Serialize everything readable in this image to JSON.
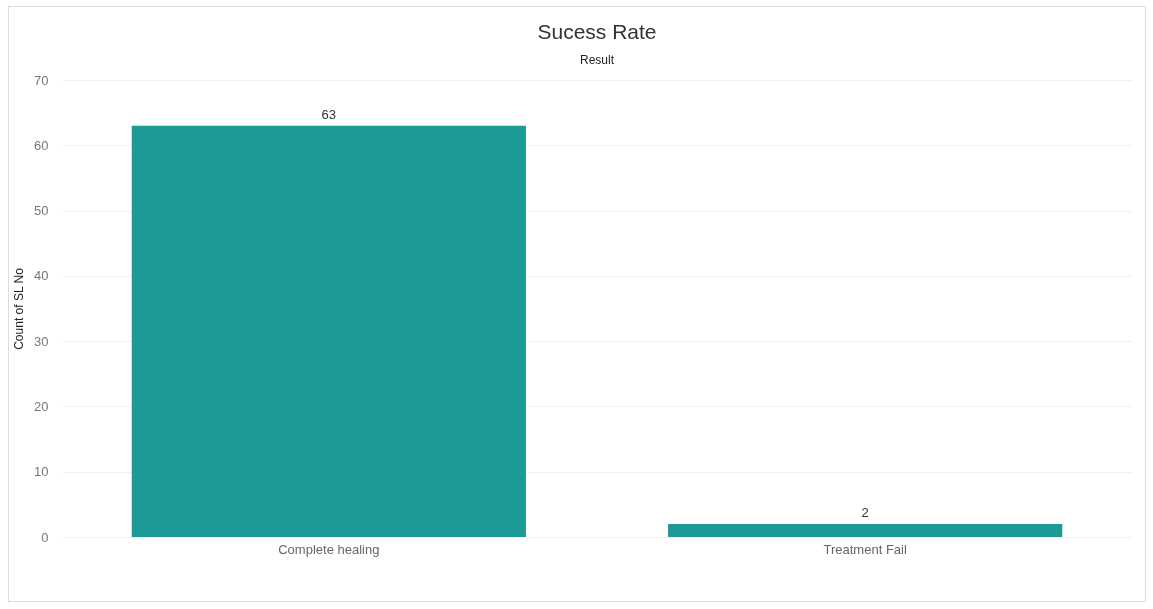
{
  "chart_data": {
    "type": "bar",
    "title": "Sucess Rate",
    "xlabel": "Result",
    "ylabel": "Count of SL No",
    "categories": [
      "Complete healing",
      "Treatment Fail"
    ],
    "values": [
      63,
      2
    ],
    "color": "#1d9a96",
    "ylim": [
      0,
      70
    ],
    "yticks": [
      0,
      10,
      20,
      30,
      40,
      50,
      60,
      70
    ],
    "grid": "y",
    "data_labels": true
  }
}
